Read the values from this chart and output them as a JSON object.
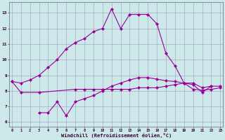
{
  "bg_color": "#cde8e8",
  "grid_color": "#aaaacc",
  "line_color": "#990099",
  "x_values": [
    0,
    1,
    2,
    3,
    4,
    5,
    6,
    7,
    8,
    9,
    10,
    11,
    12,
    13,
    14,
    15,
    16,
    17,
    18,
    19,
    20,
    21,
    22,
    23
  ],
  "upper_curve_x": [
    0,
    1,
    2,
    3,
    4,
    5,
    6,
    7,
    8,
    9,
    10,
    11,
    12,
    13,
    14,
    15,
    16,
    17,
    18,
    19,
    20,
    21,
    22
  ],
  "upper_curve_y": [
    8.6,
    8.5,
    8.7,
    9.0,
    9.5,
    10.0,
    10.7,
    11.1,
    11.35,
    11.8,
    12.0,
    13.25,
    12.0,
    12.9,
    12.9,
    12.9,
    12.3,
    10.4,
    9.6,
    8.5,
    8.4,
    7.9,
    8.3
  ],
  "flat_curve_x": [
    0,
    1,
    3,
    7,
    8,
    9,
    10,
    11,
    12,
    13,
    14,
    15,
    16,
    17,
    18,
    19,
    20,
    21,
    22,
    23
  ],
  "flat_curve_y": [
    8.6,
    7.9,
    7.9,
    8.1,
    8.1,
    8.1,
    8.1,
    8.1,
    8.1,
    8.1,
    8.2,
    8.2,
    8.2,
    8.3,
    8.4,
    8.5,
    8.5,
    8.2,
    8.3,
    8.3
  ],
  "lower_curve_x": [
    3,
    4,
    5,
    6,
    7,
    8,
    9,
    10,
    11,
    12,
    13,
    14,
    15,
    16,
    17,
    18,
    19,
    20,
    21,
    22,
    23
  ],
  "lower_curve_y": [
    6.6,
    6.6,
    7.3,
    6.4,
    7.3,
    7.5,
    7.7,
    8.0,
    8.3,
    8.5,
    8.7,
    8.85,
    8.85,
    8.75,
    8.65,
    8.6,
    8.5,
    8.1,
    8.05,
    8.1,
    8.2
  ],
  "xlabel": "Windchill (Refroidissement éolien,°C)",
  "yticks": [
    6,
    7,
    8,
    9,
    10,
    11,
    12,
    13
  ],
  "xlim": [
    -0.3,
    23.3
  ],
  "ylim": [
    5.7,
    13.7
  ]
}
